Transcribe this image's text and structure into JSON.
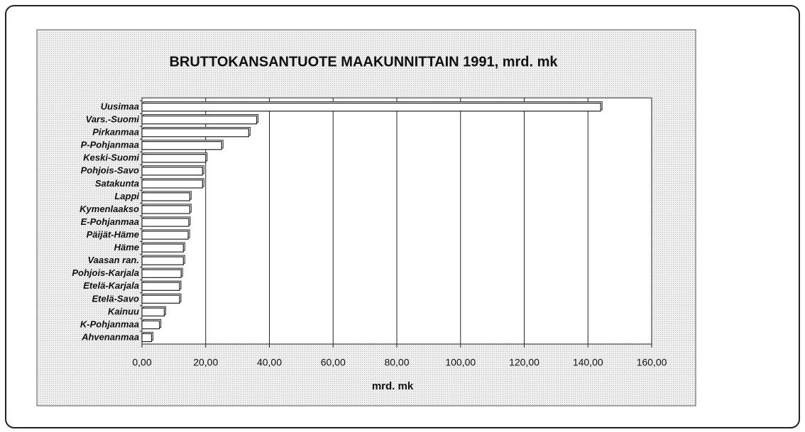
{
  "chart_data": {
    "type": "bar",
    "orientation": "horizontal",
    "title": "BRUTTOKANSANTUOTE MAAKUNNITTAIN 1991,  mrd. mk",
    "x_label": "mrd.  mk",
    "categories": [
      "Uusimaa",
      "Vars.-Suomi",
      "Pirkanmaa",
      "P-Pohjanmaa",
      "Keski-Suomi",
      "Pohjois-Savo",
      "Satakunta",
      "Lappi",
      "Kymenlaakso",
      "E-Pohjanmaa",
      "Päijät-Häme",
      "Häme",
      "Vaasan ran.",
      "Pohjois-Karjala",
      "Etelä-Karjala",
      "Etelä-Savo",
      "Kainuu",
      "K-Pohjanmaa",
      "Ahvenanmaa"
    ],
    "values": [
      144,
      36,
      33.5,
      25,
      20,
      19,
      19,
      15,
      15,
      14.7,
      14.5,
      13,
      13,
      12.3,
      11.8,
      11.8,
      7,
      5.5,
      3
    ],
    "color": "#ffffff",
    "xlim": [
      0,
      160
    ],
    "xticks": [
      {
        "value": 0,
        "label": "0,00"
      },
      {
        "value": 20,
        "label": "20,00"
      },
      {
        "value": 40,
        "label": "40,00"
      },
      {
        "value": 60,
        "label": "60,00"
      },
      {
        "value": 80,
        "label": "80,00"
      },
      {
        "value": 100,
        "label": "100,00"
      },
      {
        "value": 120,
        "label": "120,00"
      },
      {
        "value": 140,
        "label": "140,00"
      },
      {
        "value": 160,
        "label": "160,00"
      }
    ],
    "grid": true
  }
}
